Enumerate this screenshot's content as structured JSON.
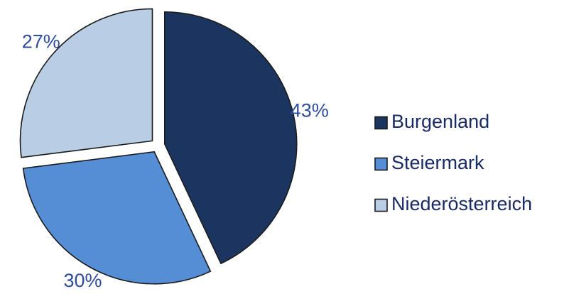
{
  "chart_data": {
    "type": "pie",
    "categories": [
      "Burgenland",
      "Steiermark",
      "Niederösterreich"
    ],
    "values": [
      43,
      30,
      27
    ],
    "labels": [
      "43%",
      "30%",
      "27%"
    ],
    "colors": [
      "#1b3560",
      "#558ed5",
      "#b9cde5"
    ],
    "exploded": true,
    "start_angle_deg": 0,
    "direction": "clockwise",
    "legend_position": "right"
  }
}
